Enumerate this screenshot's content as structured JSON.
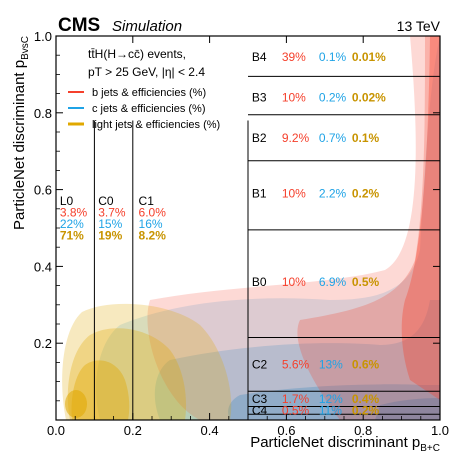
{
  "header": {
    "experiment": "CMS",
    "tag": "Simulation",
    "energy": "13 TeV"
  },
  "colors": {
    "b": "#f5402c",
    "c": "#1fa3e6",
    "light": "#e0a800",
    "light_text": "#c89400"
  },
  "chart_data": {
    "type": "heatmap",
    "xlabel": "ParticleNet discriminant p",
    "xlabel_sub": "B+C",
    "ylabel": "ParticleNet discriminant p",
    "ylabel_sub": "BvsC",
    "xlim": [
      0,
      1
    ],
    "ylim": [
      0,
      1
    ],
    "xticks": [
      "0.0",
      "0.2",
      "0.4",
      "0.6",
      "0.8",
      "1.0"
    ],
    "xtick_values": [
      0.0,
      0.2,
      0.4,
      0.6,
      0.8,
      1.0
    ],
    "yticks": [
      "0.2",
      "0.4",
      "0.6",
      "0.8",
      "1.0"
    ],
    "ytick_values": [
      0.2,
      0.4,
      0.6,
      0.8,
      1.0
    ],
    "process_line1": "tt̄H(H→cc̄) events,",
    "process_line2": "pT > 25 GeV, |η| < 2.4",
    "legend": [
      {
        "key": "b",
        "label": "b jets & efficiencies (%)"
      },
      {
        "key": "c",
        "label": "c jets & efficiencies (%)"
      },
      {
        "key": "light",
        "label": "light jets & efficiencies (%)"
      }
    ],
    "boundaries": {
      "vertical_x": [
        0.1,
        0.2,
        0.5
      ],
      "vertical_ymax": 0.78,
      "horizontal_y": [
        0.015,
        0.035,
        0.075,
        0.215,
        0.495,
        0.675,
        0.795,
        0.895
      ],
      "horizontal_xmin": 0.5
    },
    "categories": [
      {
        "name": "L0",
        "b": "3.8%",
        "c": "22%",
        "light": "71%",
        "x": 0.01,
        "y": [
          0.57,
          0.54,
          0.51,
          0.48
        ]
      },
      {
        "name": "C0",
        "b": "3.7%",
        "c": "15%",
        "light": "19%",
        "x": 0.11,
        "y": [
          0.57,
          0.54,
          0.51,
          0.48
        ]
      },
      {
        "name": "C1",
        "b": "6.0%",
        "c": "16%",
        "light": "8.2%",
        "x": 0.215,
        "y": [
          0.57,
          0.54,
          0.51,
          0.48
        ]
      },
      {
        "name": "B4",
        "b": "39%",
        "c": "0.1%",
        "light": "0.01%",
        "x": 0.51,
        "y": 0.945
      },
      {
        "name": "B3",
        "b": "10%",
        "c": "0.2%",
        "light": "0.02%",
        "x": 0.51,
        "y": 0.84
      },
      {
        "name": "B2",
        "b": "9.2%",
        "c": "0.7%",
        "light": "0.1%",
        "x": 0.51,
        "y": 0.735
      },
      {
        "name": "B1",
        "b": "10%",
        "c": "2.2%",
        "light": "0.2%",
        "x": 0.51,
        "y": 0.59
      },
      {
        "name": "B0",
        "b": "10%",
        "c": "6.9%",
        "light": "0.5%",
        "x": 0.51,
        "y": 0.36
      },
      {
        "name": "C2",
        "b": "5.6%",
        "c": "13%",
        "light": "0.6%",
        "x": 0.51,
        "y": 0.145
      },
      {
        "name": "C3",
        "b": "1.7%",
        "c": "12%",
        "light": "0.4%",
        "x": 0.51,
        "y": 0.055
      },
      {
        "name": "C4",
        "b": "0.5%",
        "c": "11%",
        "light": "0.2%",
        "x": 0.51,
        "y": 0.025
      }
    ]
  }
}
